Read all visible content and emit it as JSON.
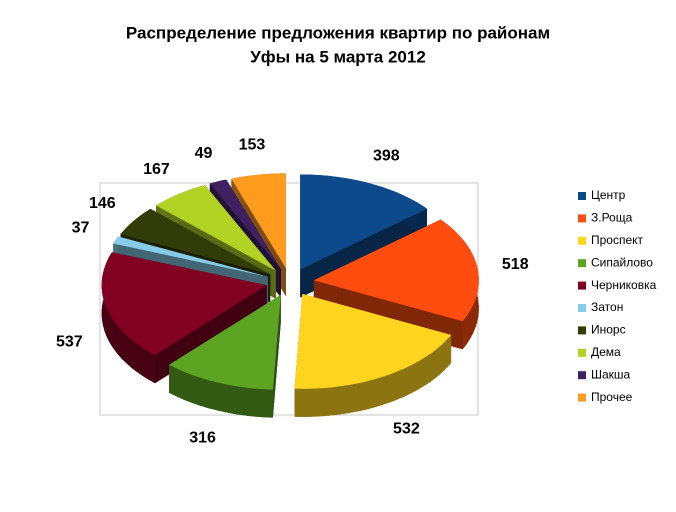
{
  "chart_data": {
    "type": "pie3d",
    "title": [
      "Распределение предложения  квартир по районам",
      "Уфы на 5 марта 2012"
    ],
    "categories": [
      "Центр",
      "З.Роща",
      "Проспект",
      "Сипайлово",
      "Черниковка",
      "Затон",
      "Инорс",
      "Дема",
      "Шакша",
      "Прочее"
    ],
    "values": [
      398,
      518,
      532,
      316,
      537,
      37,
      146,
      167,
      49,
      153
    ],
    "colors": [
      "#0d4a8c",
      "#ff4d0f",
      "#ffd41f",
      "#5da423",
      "#820022",
      "#86cbe8",
      "#323c08",
      "#b3d324",
      "#3f2062",
      "#ff9b1f"
    ],
    "legend": "right"
  }
}
